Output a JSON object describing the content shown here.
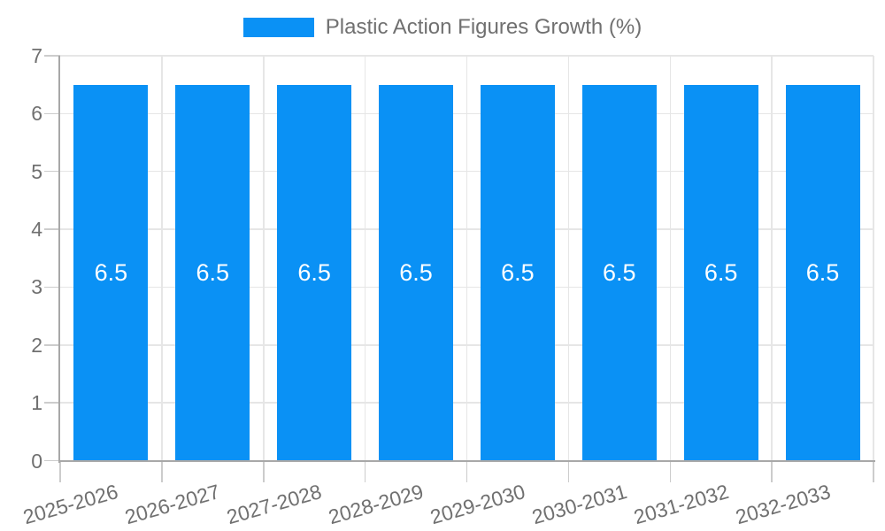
{
  "chart_data": {
    "type": "bar",
    "title": "Plastic Action Figures Growth (%)",
    "categories": [
      "2025-2026",
      "2026-2027",
      "2027-2028",
      "2028-2029",
      "2029-2030",
      "2030-2031",
      "2031-2032",
      "2032-2033"
    ],
    "series": [
      {
        "name": "Plastic Action Figures Growth (%)",
        "values": [
          6.5,
          6.5,
          6.5,
          6.5,
          6.5,
          6.5,
          6.5,
          6.5
        ]
      }
    ],
    "bar_value_labels": [
      "6.5",
      "6.5",
      "6.5",
      "6.5",
      "6.5",
      "6.5",
      "6.5",
      "6.5"
    ],
    "xlabel": "",
    "ylabel": "",
    "ylim": [
      0,
      7
    ],
    "yticks": [
      0,
      1,
      2,
      3,
      4,
      5,
      6,
      7
    ],
    "grid": true,
    "legend_position": "top",
    "colors": {
      "bar": "#0a91f5",
      "grid": "#e6e6e6",
      "axis": "#a8a8a8",
      "tick": "#cccccc",
      "text": "#707070",
      "value_label": "#ffffff",
      "background": "#ffffff"
    }
  }
}
